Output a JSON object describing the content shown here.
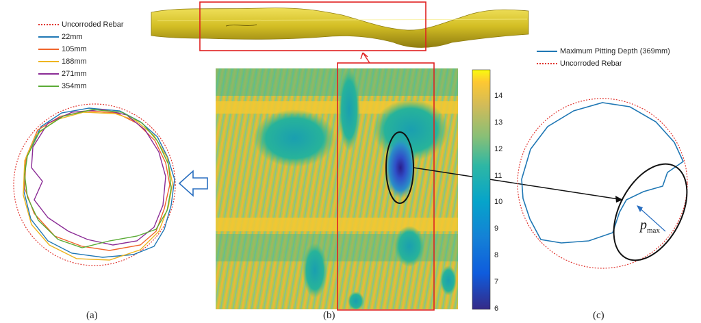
{
  "legend_a": {
    "items": [
      {
        "label": "Uncorroded Rebar",
        "color": "#e0342e",
        "style": "dotted"
      },
      {
        "label": "22mm",
        "color": "#1f77b4",
        "style": "solid"
      },
      {
        "label": "105mm",
        "color": "#f0642a",
        "style": "solid"
      },
      {
        "label": "188mm",
        "color": "#eeb520",
        "style": "solid"
      },
      {
        "label": "271mm",
        "color": "#8a2a95",
        "style": "solid"
      },
      {
        "label": "354mm",
        "color": "#5aab35",
        "style": "solid"
      }
    ]
  },
  "legend_c": {
    "items": [
      {
        "label": "Maximum Pitting Depth (369mm)",
        "color": "#1f77b4",
        "style": "solid"
      },
      {
        "label": "Uncorroded Rebar",
        "color": "#e0342e",
        "style": "dotted"
      }
    ]
  },
  "colorbar": {
    "ticks": [
      "14",
      "13",
      "12",
      "11",
      "10",
      "9",
      "8",
      "7",
      "6"
    ],
    "min": 6,
    "max": 15
  },
  "labels": {
    "panel_a": "(a)",
    "panel_b": "(b)",
    "panel_c": "(c)",
    "p_symbol": "p",
    "p_subscript": "max"
  },
  "colors": {
    "highlight_box": "#e02020",
    "rebar_gold": "#c9b21c",
    "arrow_blue": "#2a6fc0"
  }
}
